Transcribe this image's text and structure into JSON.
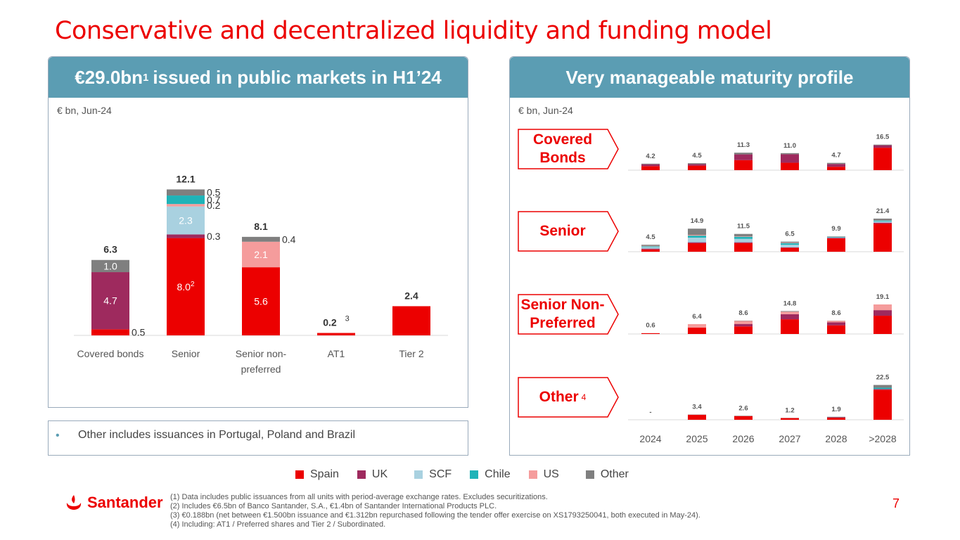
{
  "title": "Conservative and decentralized liquidity and funding model",
  "left_panel": {
    "heading_main": "€29.0bn",
    "heading_sup": "1",
    "heading_rest": "issued in public markets in H1’24",
    "unit": "€ bn, Jun-24"
  },
  "right_panel": {
    "heading": "Very manageable maturity profile",
    "unit": "€ bn, Jun-24",
    "categories": [
      {
        "label_line1": "Covered",
        "label_line2": "Bonds",
        "sup": ""
      },
      {
        "label_line1": "Senior",
        "label_line2": "",
        "sup": ""
      },
      {
        "label_line1": "Senior Non-",
        "label_line2": "Preferred",
        "sup": ""
      },
      {
        "label_line1": "Other",
        "label_line2": "",
        "sup": "4"
      }
    ]
  },
  "note": "Other includes issuances in Portugal, Poland and Brazil",
  "legend": [
    {
      "label": "Spain",
      "color": "#ec0000"
    },
    {
      "label": "UK",
      "color": "#9e2a5e"
    },
    {
      "label": "SCF",
      "color": "#a9d1e0"
    },
    {
      "label": "Chile",
      "color": "#1fb3b8"
    },
    {
      "label": "US",
      "color": "#f59c9c"
    },
    {
      "label": "Other",
      "color": "#7f7f7f"
    }
  ],
  "logo": "Santander",
  "footnotes": [
    "(1)   Data includes public issuances from all units with period-average exchange rates. Excludes securitizations.",
    "(2)   Includes €6.5bn of Banco Santander, S.A., €1.4bn of Santander International Products PLC.",
    "(3)   €0.188bn (net between €1.500bn issuance and €1.312bn repurchased following the tender offer exercise on XS1793250041, both executed in May-24).",
    "(4)   Including: AT1 / Preferred shares and Tier 2 / Subordinated."
  ],
  "page_number": "7",
  "chart_data": [
    {
      "type": "bar",
      "stacked": true,
      "title": "€29.0bn issued in public markets in H1’24",
      "unit": "€ bn, Jun-24",
      "categories": [
        "Covered bonds",
        "Senior",
        "Senior non-preferred",
        "AT1",
        "Tier 2"
      ],
      "category_labels": [
        [
          "Covered bonds"
        ],
        [
          "Senior"
        ],
        [
          "Senior non-",
          "preferred"
        ],
        [
          "AT1"
        ],
        [
          "Tier 2"
        ]
      ],
      "totals": [
        "6.3",
        "12.1",
        "8.1",
        "0.2",
        "2.4"
      ],
      "total_sups": [
        "",
        "",
        "",
        "3",
        ""
      ],
      "series": [
        {
          "name": "Spain",
          "color": "#ec0000",
          "values": [
            0.5,
            8.0,
            5.6,
            0.2,
            2.4
          ],
          "labels": [
            "0.5",
            "8.0",
            "5.6",
            "",
            ""
          ],
          "label_sups": [
            "",
            "2",
            "",
            "",
            ""
          ]
        },
        {
          "name": "UK",
          "color": "#9e2a5e",
          "values": [
            4.7,
            0.3,
            0,
            0,
            0
          ],
          "labels": [
            "4.7",
            "0.3",
            "",
            "",
            ""
          ]
        },
        {
          "name": "SCF",
          "color": "#a9d1e0",
          "values": [
            0,
            2.3,
            0,
            0,
            0
          ],
          "labels": [
            "",
            "2.3",
            "",
            "",
            ""
          ]
        },
        {
          "name": "US",
          "color": "#f59c9c",
          "values": [
            0,
            0.2,
            2.1,
            0,
            0
          ],
          "labels": [
            "",
            "0.2",
            "2.1",
            "",
            ""
          ]
        },
        {
          "name": "Chile",
          "color": "#1fb3b8",
          "values": [
            0,
            0.7,
            0,
            0,
            0
          ],
          "labels": [
            "",
            "0.7",
            "",
            "",
            ""
          ]
        },
        {
          "name": "Other",
          "color": "#7f7f7f",
          "values": [
            1.0,
            0.5,
            0.4,
            0,
            0
          ],
          "labels": [
            "1.0",
            "0.5",
            "0.4",
            "",
            ""
          ]
        }
      ]
    },
    {
      "type": "bar",
      "stacked": true,
      "title": "Very manageable maturity profile",
      "unit": "€ bn, Jun-24",
      "years": [
        "2024",
        "2025",
        "2026",
        "2027",
        "2028",
        ">2028"
      ],
      "panels": [
        {
          "name": "Covered Bonds",
          "totals": [
            "4.2",
            "4.5",
            "11.3",
            "11.0",
            "4.7",
            "16.5"
          ],
          "series": [
            {
              "name": "Spain",
              "color": "#ec0000",
              "values": [
                2.6,
                2.9,
                6.5,
                4.8,
                2.2,
                14.5
              ]
            },
            {
              "name": "UK",
              "color": "#9e2a5e",
              "values": [
                1.2,
                1.0,
                3.7,
                5.5,
                1.8,
                1.6
              ]
            },
            {
              "name": "Other",
              "color": "#7f7f7f",
              "values": [
                0.4,
                0.6,
                1.1,
                0.7,
                0.7,
                0.4
              ]
            }
          ]
        },
        {
          "name": "Senior",
          "totals": [
            "4.5",
            "14.9",
            "11.5",
            "6.5",
            "9.9",
            "21.4"
          ],
          "series": [
            {
              "name": "Spain",
              "color": "#ec0000",
              "values": [
                1.5,
                5.5,
                5.6,
                2.5,
                8.6,
                18.2
              ]
            },
            {
              "name": "UK",
              "color": "#9e2a5e",
              "values": [
                0.5,
                0.6,
                0.5,
                0.3,
                0.4,
                0.6
              ]
            },
            {
              "name": "SCF",
              "color": "#a9d1e0",
              "values": [
                1.0,
                3.0,
                2.2,
                1.7,
                0.3,
                0.8
              ]
            },
            {
              "name": "Chile",
              "color": "#1fb3b8",
              "values": [
                0.5,
                1.3,
                1.4,
                1.0,
                0.3,
                0.6
              ]
            },
            {
              "name": "US",
              "color": "#f59c9c",
              "values": [
                0.3,
                0.5,
                0.3,
                0.3,
                0,
                0.2
              ]
            },
            {
              "name": "Other",
              "color": "#7f7f7f",
              "values": [
                0.7,
                4.0,
                1.5,
                0.7,
                0.3,
                1.0
              ]
            }
          ]
        },
        {
          "name": "Senior Non-Preferred",
          "totals": [
            "0.6",
            "6.4",
            "8.6",
            "14.8",
            "8.6",
            "19.1"
          ],
          "series": [
            {
              "name": "Spain",
              "color": "#ec0000",
              "values": [
                0.5,
                4.1,
                4.9,
                9.5,
                5.6,
                11.8
              ]
            },
            {
              "name": "UK",
              "color": "#9e2a5e",
              "values": [
                0,
                0,
                1.6,
                3.3,
                1.9,
                3.6
              ]
            },
            {
              "name": "US",
              "color": "#f59c9c",
              "values": [
                0.1,
                2.3,
                1.9,
                1.6,
                1.0,
                3.7
              ]
            },
            {
              "name": "Other",
              "color": "#7f7f7f",
              "values": [
                0,
                0,
                0.2,
                0.4,
                0.1,
                0
              ]
            }
          ]
        },
        {
          "name": "Other",
          "totals": [
            "-",
            "3.4",
            "2.6",
            "1.2",
            "1.9",
            "22.5"
          ],
          "series": [
            {
              "name": "Spain",
              "color": "#ec0000",
              "values": [
                0,
                3.2,
                2.4,
                1.1,
                1.3,
                19.4
              ]
            },
            {
              "name": "UK",
              "color": "#9e2a5e",
              "values": [
                0,
                0.1,
                0,
                0,
                0.3,
                0.5
              ]
            },
            {
              "name": "Chile",
              "color": "#1fb3b8",
              "values": [
                0,
                0,
                0,
                0,
                0,
                0.8
              ]
            },
            {
              "name": "Other",
              "color": "#7f7f7f",
              "values": [
                0,
                0.1,
                0.2,
                0.1,
                0.3,
                1.8
              ]
            }
          ]
        }
      ]
    }
  ]
}
